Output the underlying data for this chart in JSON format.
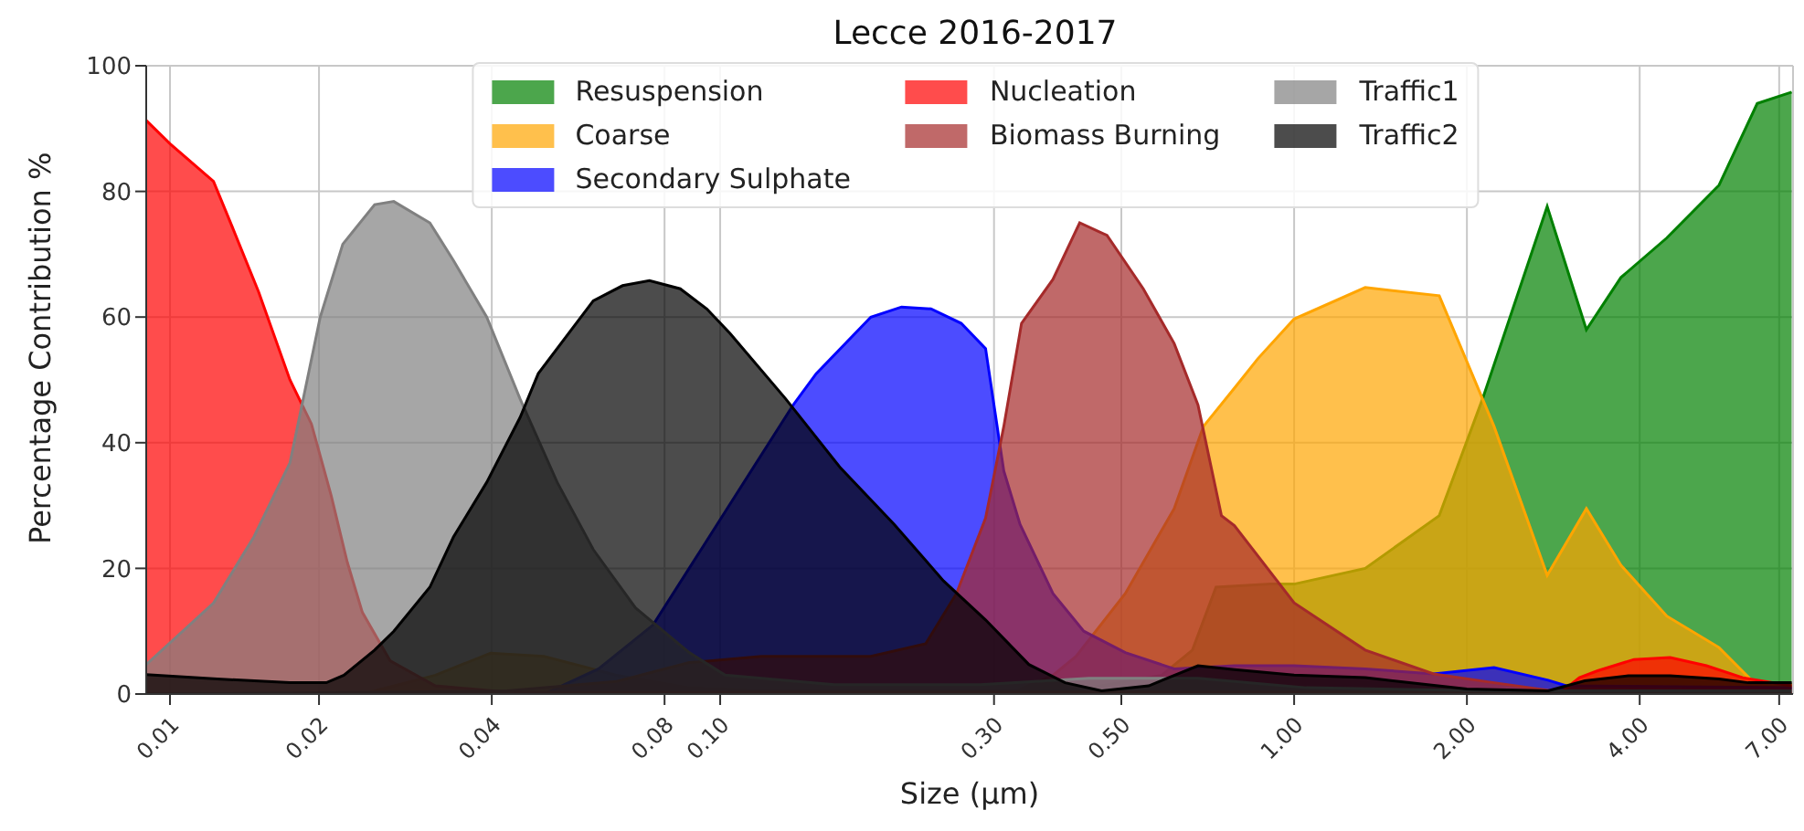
{
  "chart_data": {
    "type": "area",
    "title": "Lecce 2016-2017",
    "xlabel": "Size (µm)",
    "ylabel": "Percentage Contribution %",
    "log": "x",
    "grid": true,
    "legend": "top",
    "xlim": [
      0.01,
      7.4
    ],
    "ylim": [
      0,
      100
    ],
    "xticks": [
      {
        "value": 0.011,
        "label": "0.01"
      },
      {
        "value": 0.02,
        "label": "0.02"
      },
      {
        "value": 0.04,
        "label": "0.04"
      },
      {
        "value": 0.08,
        "label": "0.08"
      },
      {
        "value": 0.1,
        "label": "0.10"
      },
      {
        "value": 0.3,
        "label": "0.30"
      },
      {
        "value": 0.5,
        "label": "0.50"
      },
      {
        "value": 1,
        "label": "1.00"
      },
      {
        "value": 2,
        "label": "2.00"
      },
      {
        "value": 4,
        "label": "4.00"
      },
      {
        "value": 7,
        "label": "7.00"
      }
    ],
    "yticks": [
      0,
      20,
      40,
      60,
      80,
      100
    ],
    "series": [
      {
        "name": "Resuspension",
        "color": "#008000",
        "x": [
          0.01,
          0.3,
          0.439,
          0.588,
          0.665,
          0.731,
          0.91,
          1.0,
          1.33,
          1.79,
          2.13,
          2.76,
          3.23,
          3.71,
          4.46,
          5.5,
          6.41,
          7.36
        ],
        "values": [
          0,
          0,
          1,
          3,
          7,
          17,
          17.5,
          17.5,
          20,
          28.4,
          47,
          77.6,
          58,
          66.3,
          72.6,
          81,
          94,
          95.8
        ]
      },
      {
        "name": "Coarse",
        "color": "#ffa500",
        "x": [
          0.01,
          0.0238,
          0.0319,
          0.0398,
          0.0493,
          0.066,
          0.0883,
          0.118,
          0.328,
          0.38,
          0.417,
          0.508,
          0.618,
          0.695,
          0.787,
          0.865,
          1.0,
          1.33,
          1.79,
          2.23,
          2.76,
          3.23,
          3.71,
          4.46,
          5.5,
          6.28,
          7.36
        ],
        "values": [
          0,
          0,
          3,
          6.5,
          6,
          3,
          1,
          0.5,
          0.5,
          3,
          6,
          16,
          29.5,
          42.6,
          48.7,
          53.4,
          59.7,
          64.7,
          63.4,
          42.6,
          18.9,
          29.5,
          20.5,
          12.4,
          7.4,
          2.1,
          1.5
        ]
      },
      {
        "name": "Secondary Sulphate",
        "color": "#0000ff",
        "x": [
          0.01,
          0.0493,
          0.0614,
          0.0764,
          0.0883,
          0.102,
          0.134,
          0.147,
          0.183,
          0.207,
          0.233,
          0.263,
          0.29,
          0.312,
          0.333,
          0.38,
          0.43,
          0.508,
          0.618,
          0.787,
          1.0,
          1.33,
          1.75,
          2.23,
          2.77,
          2.98,
          7.36
        ],
        "values": [
          0,
          0,
          4,
          11,
          20,
          29,
          46,
          51,
          60,
          61.6,
          61.3,
          59,
          55,
          35.5,
          27,
          16,
          10,
          6.6,
          4,
          4.5,
          4.5,
          4,
          3.2,
          4.2,
          2.2,
          1.3,
          1
        ]
      },
      {
        "name": "Nucleation",
        "color": "#ff0000",
        "x": [
          0.01,
          0.011,
          0.0131,
          0.0141,
          0.0157,
          0.0178,
          0.0194,
          0.021,
          0.0224,
          0.0238,
          0.0266,
          0.0319,
          0.0426,
          2.92,
          3.14,
          3.38,
          3.91,
          4.52,
          5.23,
          6.05,
          7.36
        ],
        "values": [
          91.3,
          87.6,
          81.6,
          74.5,
          64,
          50,
          43,
          31.6,
          21,
          13,
          5.3,
          1.3,
          0.3,
          0.3,
          2.6,
          3.7,
          5.5,
          5.8,
          4.5,
          2.6,
          1.3
        ]
      },
      {
        "name": "Biomass Burning",
        "color": "#a52a2a",
        "x": [
          0.01,
          0.0426,
          0.066,
          0.0883,
          0.118,
          0.183,
          0.228,
          0.258,
          0.29,
          0.312,
          0.335,
          0.38,
          0.423,
          0.472,
          0.546,
          0.618,
          0.68,
          0.747,
          0.787,
          1.0,
          1.33,
          1.75,
          2.23,
          2.92,
          7.36
        ],
        "values": [
          0,
          0.5,
          2,
          5,
          6,
          6,
          8,
          16,
          28,
          42.6,
          59,
          66,
          75,
          73,
          64.5,
          55.8,
          46,
          28.4,
          26.8,
          14.5,
          7,
          3.2,
          1.8,
          0.3,
          0.3
        ]
      },
      {
        "name": "Traffic1",
        "color": "#808080",
        "x": [
          0.01,
          0.0131,
          0.0154,
          0.0178,
          0.0201,
          0.022,
          0.025,
          0.027,
          0.0312,
          0.0343,
          0.0392,
          0.0448,
          0.052,
          0.0601,
          0.0712,
          0.0883,
          0.102,
          0.158,
          0.284,
          0.439,
          0.68,
          1.05,
          2.18,
          2.92,
          7.36
        ],
        "values": [
          4.7,
          14.5,
          25,
          36.8,
          60,
          71.6,
          77.9,
          78.4,
          75,
          69,
          60,
          47,
          33.7,
          23,
          13.7,
          6.6,
          3,
          1.5,
          1.5,
          2.5,
          2.5,
          1,
          0.5,
          0.5,
          0.5
        ]
      },
      {
        "name": "Traffic2",
        "color": "#000000",
        "x": [
          0.01,
          0.0133,
          0.0178,
          0.0206,
          0.0221,
          0.025,
          0.027,
          0.0312,
          0.0343,
          0.0392,
          0.0448,
          0.0482,
          0.0601,
          0.0676,
          0.0753,
          0.0852,
          0.0948,
          0.104,
          0.13,
          0.162,
          0.201,
          0.245,
          0.29,
          0.345,
          0.399,
          0.462,
          0.558,
          0.68,
          0.787,
          1.0,
          1.33,
          2.0,
          2.77,
          3.21,
          3.82,
          4.52,
          5.5,
          6.18,
          7.36
        ],
        "values": [
          3.1,
          2.4,
          1.8,
          1.8,
          3,
          7,
          10,
          17,
          25,
          33.7,
          44,
          51,
          62.6,
          65,
          65.8,
          64.5,
          61.3,
          57.4,
          47,
          36,
          27,
          18,
          11.8,
          4.7,
          1.8,
          0.5,
          1.3,
          4.5,
          3.9,
          3,
          2.6,
          0.8,
          0.5,
          2.1,
          2.9,
          2.9,
          2.4,
          1.8,
          1.8
        ]
      }
    ]
  }
}
